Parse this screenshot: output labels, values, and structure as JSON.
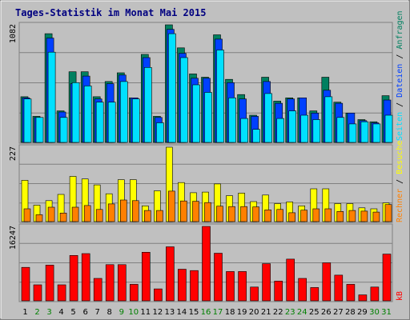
{
  "title": "Tages-Statistik im Monat Mai 2015",
  "colors": {
    "title": "#000080",
    "frame_bg": "#c0c0c0",
    "plot_bg": "#c0c0c0",
    "grid": "#808080",
    "anfragen": "#008060",
    "dateien": "#0040ff",
    "seiten": "#00e0ff",
    "besuche": "#ffff00",
    "rechner": "#ff8000",
    "kb": "#ff0000",
    "weekend": "#008000",
    "weekday": "#000000"
  },
  "right_labels": {
    "anfragen": "Anfragen",
    "dateien": "Dateien",
    "seiten": "Seiten",
    "besuche": "Besuche",
    "rechner": "Rechner",
    "kb": "kB",
    "sep": " / "
  },
  "chart_data": [
    {
      "type": "bar",
      "panel": "top",
      "ylabel": "1082",
      "ylim": [
        0,
        1082
      ],
      "categories": [
        "1",
        "2",
        "3",
        "4",
        "5",
        "6",
        "7",
        "8",
        "9",
        "10",
        "11",
        "12",
        "13",
        "14",
        "15",
        "16",
        "17",
        "18",
        "19",
        "20",
        "21",
        "22",
        "23",
        "24",
        "25",
        "26",
        "27",
        "28",
        "29",
        "30",
        "31"
      ],
      "series": [
        {
          "name": "Anfragen",
          "values": [
            420,
            240,
            1000,
            290,
            650,
            650,
            420,
            560,
            640,
            410,
            810,
            240,
            1082,
            870,
            630,
            600,
            990,
            580,
            440,
            250,
            600,
            380,
            410,
            410,
            290,
            600,
            370,
            270,
            210,
            190,
            430
          ]
        },
        {
          "name": "Dateien",
          "values": [
            410,
            230,
            960,
            280,
            540,
            610,
            400,
            540,
            620,
            410,
            780,
            230,
            1040,
            820,
            590,
            590,
            950,
            550,
            400,
            240,
            560,
            360,
            400,
            410,
            270,
            480,
            360,
            270,
            200,
            180,
            390
          ]
        },
        {
          "name": "Seiten",
          "values": [
            400,
            230,
            830,
            230,
            550,
            520,
            370,
            370,
            560,
            400,
            690,
            180,
            1000,
            780,
            530,
            460,
            850,
            410,
            220,
            120,
            450,
            220,
            290,
            250,
            210,
            420,
            230,
            170,
            190,
            170,
            250
          ]
        }
      ]
    },
    {
      "type": "bar",
      "panel": "middle",
      "ylabel": "227",
      "ylim": [
        0,
        227
      ],
      "categories": [
        "1",
        "2",
        "3",
        "4",
        "5",
        "6",
        "7",
        "8",
        "9",
        "10",
        "11",
        "12",
        "13",
        "14",
        "15",
        "16",
        "17",
        "18",
        "19",
        "20",
        "21",
        "22",
        "23",
        "24",
        "25",
        "26",
        "27",
        "28",
        "29",
        "30",
        "31"
      ],
      "series": [
        {
          "name": "Besuche",
          "values": [
            126,
            50,
            64,
            83,
            138,
            130,
            112,
            85,
            128,
            128,
            48,
            94,
            227,
            119,
            88,
            90,
            115,
            79,
            87,
            61,
            81,
            55,
            60,
            48,
            100,
            100,
            55,
            55,
            42,
            39,
            57
          ]
        },
        {
          "name": "Rechner",
          "values": [
            39,
            21,
            44,
            26,
            44,
            49,
            37,
            54,
            66,
            64,
            34,
            34,
            93,
            63,
            62,
            58,
            47,
            46,
            46,
            45,
            36,
            37,
            27,
            35,
            39,
            39,
            31,
            34,
            32,
            29,
            52
          ]
        }
      ]
    },
    {
      "type": "bar",
      "panel": "bottom",
      "ylabel": "16247",
      "ylim": [
        0,
        16247
      ],
      "categories": [
        "1",
        "2",
        "3",
        "4",
        "5",
        "6",
        "7",
        "8",
        "9",
        "10",
        "11",
        "12",
        "13",
        "14",
        "15",
        "16",
        "17",
        "18",
        "19",
        "20",
        "21",
        "22",
        "23",
        "24",
        "25",
        "26",
        "27",
        "28",
        "29",
        "30",
        "31"
      ],
      "series": [
        {
          "name": "kB",
          "values": [
            7300,
            3500,
            7800,
            3500,
            9900,
            10300,
            4900,
            7900,
            7900,
            3600,
            10600,
            2600,
            11800,
            6900,
            6600,
            16247,
            10400,
            6400,
            6400,
            3000,
            8100,
            4300,
            9100,
            4900,
            2900,
            8300,
            5600,
            3600,
            1300,
            3000,
            10200
          ]
        }
      ]
    }
  ],
  "x_labels": [
    "1",
    "2",
    "3",
    "4",
    "5",
    "6",
    "7",
    "8",
    "9",
    "10",
    "11",
    "12",
    "13",
    "14",
    "15",
    "16",
    "17",
    "18",
    "19",
    "20",
    "21",
    "22",
    "23",
    "24",
    "25",
    "26",
    "27",
    "28",
    "29",
    "30",
    "31"
  ],
  "weekend_days": [
    "2",
    "3",
    "9",
    "10",
    "16",
    "17",
    "23",
    "24",
    "30",
    "31"
  ]
}
